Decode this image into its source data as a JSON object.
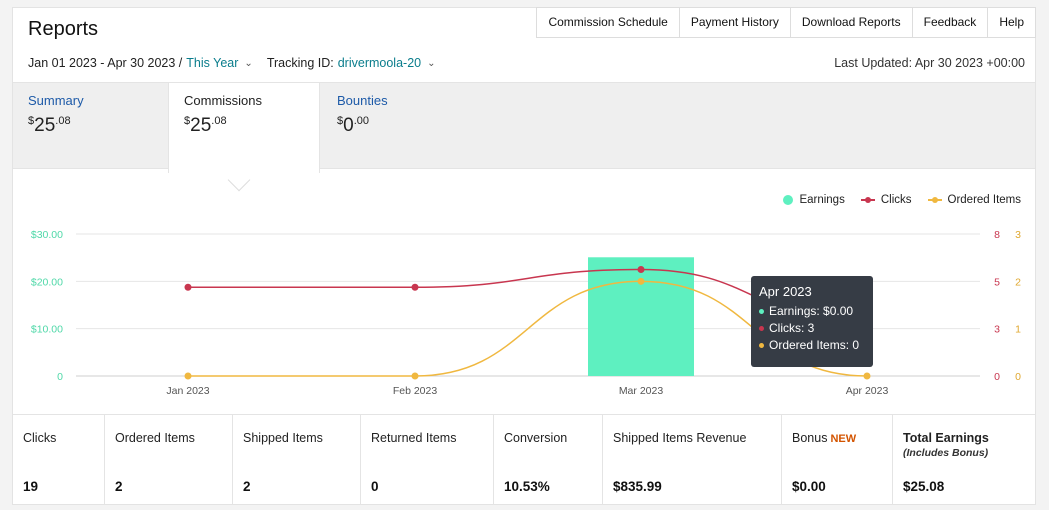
{
  "header": {
    "title": "Reports",
    "nav": [
      "Commission Schedule",
      "Payment History",
      "Download Reports",
      "Feedback",
      "Help"
    ]
  },
  "filters": {
    "date_range": "Jan 01 2023 - Apr 30 2023 /",
    "period": "This Year",
    "tracking_label": "Tracking ID:",
    "tracking_id": "drivermoola-20"
  },
  "last_updated": "Last Updated: Apr 30 2023 +00:00",
  "tabs": [
    {
      "label": "Summary",
      "dollar": "$",
      "whole": "25",
      "cents": ".08"
    },
    {
      "label": "Commissions",
      "dollar": "$",
      "whole": "25",
      "cents": ".08"
    },
    {
      "label": "Bounties",
      "dollar": "$",
      "whole": "0",
      "cents": ".00"
    }
  ],
  "legend": [
    "Earnings",
    "Clicks",
    "Ordered Items"
  ],
  "colors": {
    "earnings": "#5ef0c0",
    "clicks": "#c8364f",
    "ordered": "#f0b840"
  },
  "chart_data": {
    "type": "bar",
    "categories": [
      "Jan 2023",
      "Feb 2023",
      "Mar 2023",
      "Apr 2023"
    ],
    "series": [
      {
        "name": "Earnings",
        "type": "bar",
        "axis": "left",
        "values": [
          0,
          0,
          25.08,
          0
        ]
      },
      {
        "name": "Clicks",
        "type": "line",
        "axis": "right-1",
        "values": [
          5,
          5,
          6,
          3
        ]
      },
      {
        "name": "Ordered Items",
        "type": "line",
        "axis": "right-2",
        "values": [
          0,
          0,
          2,
          0
        ]
      }
    ],
    "left_ticks": [
      "0",
      "$10.00",
      "$20.00",
      "$30.00"
    ],
    "right1_ticks": [
      "0",
      "3",
      "5",
      "8"
    ],
    "right2_ticks": [
      "0",
      "1",
      "2",
      "3"
    ],
    "ylim_left": [
      0,
      30
    ],
    "ylim_right1": [
      0,
      8
    ],
    "ylim_right2": [
      0,
      3
    ]
  },
  "tooltip": {
    "title": "Apr 2023",
    "earnings": "Earnings: $0.00",
    "clicks": "Clicks: 3",
    "ordered": "Ordered Items: 0"
  },
  "stats": [
    {
      "label": "Clicks",
      "value": "19"
    },
    {
      "label": "Ordered Items",
      "value": "2"
    },
    {
      "label": "Shipped Items",
      "value": "2"
    },
    {
      "label": "Returned Items",
      "value": "0"
    },
    {
      "label": "Conversion",
      "value": "10.53%"
    },
    {
      "label": "Shipped Items Revenue",
      "value": "$835.99"
    },
    {
      "label": "Bonus",
      "badge": "NEW",
      "value": "$0.00"
    },
    {
      "label": "Total Earnings",
      "sub": "(Includes Bonus)",
      "value": "$25.08"
    }
  ]
}
